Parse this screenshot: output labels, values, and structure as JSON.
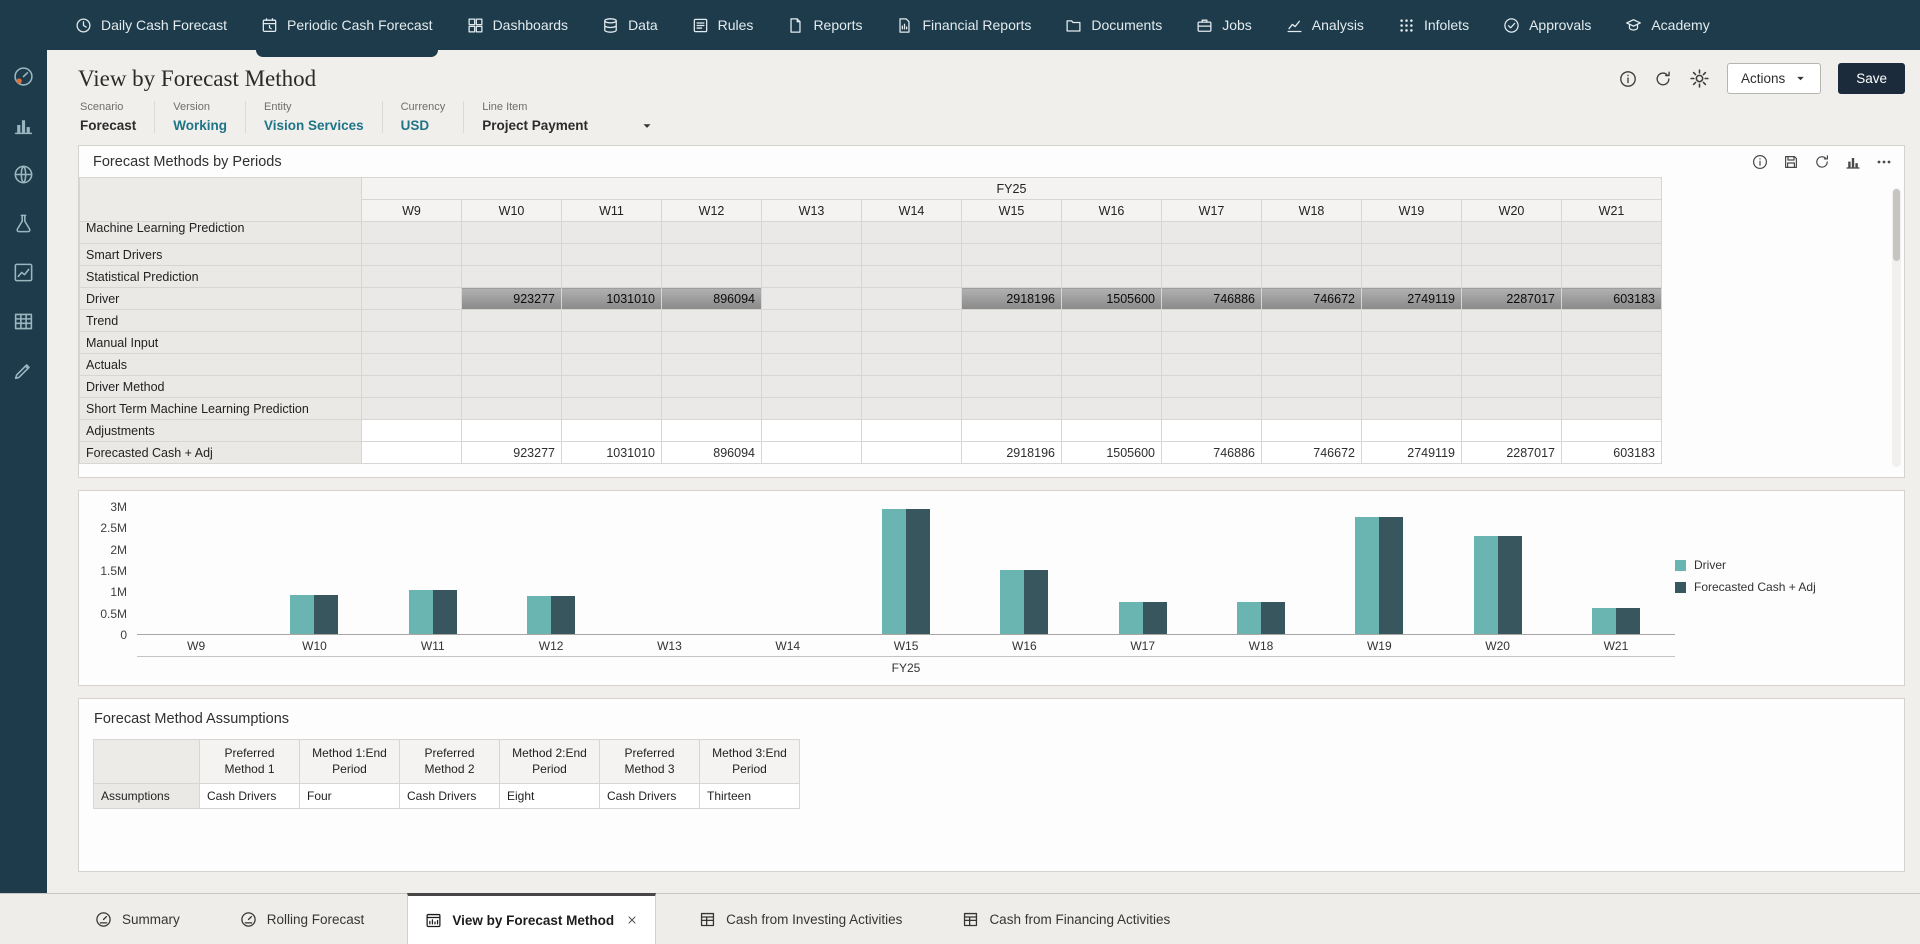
{
  "top_nav": {
    "items": [
      {
        "label": "Daily Cash Forecast",
        "icon": "clock",
        "active": false
      },
      {
        "label": "Periodic Cash Forecast",
        "icon": "calendar-clock",
        "active": true
      },
      {
        "label": "Dashboards",
        "icon": "dashboard",
        "active": false
      },
      {
        "label": "Data",
        "icon": "database",
        "active": false
      },
      {
        "label": "Rules",
        "icon": "rules",
        "active": false
      },
      {
        "label": "Reports",
        "icon": "report",
        "active": false
      },
      {
        "label": "Financial Reports",
        "icon": "financial-report",
        "active": false
      },
      {
        "label": "Documents",
        "icon": "folder",
        "active": false
      },
      {
        "label": "Jobs",
        "icon": "briefcase",
        "active": false
      },
      {
        "label": "Analysis",
        "icon": "line-chart",
        "active": false
      },
      {
        "label": "Infolets",
        "icon": "infolets",
        "active": false
      },
      {
        "label": "Approvals",
        "icon": "check",
        "active": false
      },
      {
        "label": "Academy",
        "icon": "academy",
        "active": false
      }
    ]
  },
  "left_rail": {
    "items": [
      {
        "name": "cash-forecast",
        "icon": "gauge-accent"
      },
      {
        "name": "dashboards",
        "icon": "bar-chart"
      },
      {
        "name": "data-exchange",
        "icon": "globe-grid"
      },
      {
        "name": "sandbox",
        "icon": "flask"
      },
      {
        "name": "analytics",
        "icon": "trend"
      },
      {
        "name": "forms",
        "icon": "table"
      },
      {
        "name": "valid-intersections",
        "icon": "pen-chart"
      }
    ]
  },
  "header": {
    "title": "View by Forecast Method",
    "actions_label": "Actions",
    "save_label": "Save",
    "icons": [
      "info",
      "refresh",
      "gear"
    ]
  },
  "pov": {
    "items": [
      {
        "label": "Scenario",
        "value": "Forecast",
        "link": false,
        "dropdown": false
      },
      {
        "label": "Version",
        "value": "Working",
        "link": true,
        "dropdown": false
      },
      {
        "label": "Entity",
        "value": "Vision Services",
        "link": true,
        "dropdown": false
      },
      {
        "label": "Currency",
        "value": "USD",
        "link": true,
        "dropdown": false
      },
      {
        "label": "Line Item",
        "value": "Project Payment",
        "link": false,
        "dropdown": true
      }
    ]
  },
  "grid": {
    "title": "Forecast Methods by Periods",
    "year_header": "FY25",
    "toolbar_icons": [
      "info",
      "save",
      "refresh",
      "bar-chart",
      "ellipsis"
    ],
    "columns": [
      "W9",
      "W10",
      "W11",
      "W12",
      "W13",
      "W14",
      "W15",
      "W16",
      "W17",
      "W18",
      "W19",
      "W20",
      "W21"
    ],
    "rows": [
      {
        "label": "Machine Learning Prediction",
        "style": "clipped",
        "cells": [
          "",
          "",
          "",
          "",
          "",
          "",
          "",
          "",
          "",
          "",
          "",
          "",
          ""
        ]
      },
      {
        "label": "Smart Drivers",
        "style": "readonly",
        "cells": [
          "",
          "",
          "",
          "",
          "",
          "",
          "",
          "",
          "",
          "",
          "",
          "",
          ""
        ]
      },
      {
        "label": "Statistical Prediction",
        "style": "readonly",
        "cells": [
          "",
          "",
          "",
          "",
          "",
          "",
          "",
          "",
          "",
          "",
          "",
          "",
          ""
        ]
      },
      {
        "label": "Driver",
        "style": "filled",
        "cells": [
          "",
          "923277",
          "1031010",
          "896094",
          "",
          "",
          "2918196",
          "1505600",
          "746886",
          "746672",
          "2749119",
          "2287017",
          "603183"
        ]
      },
      {
        "label": "Trend",
        "style": "readonly",
        "cells": [
          "",
          "",
          "",
          "",
          "",
          "",
          "",
          "",
          "",
          "",
          "",
          "",
          ""
        ]
      },
      {
        "label": "Manual Input",
        "style": "readonly",
        "cells": [
          "",
          "",
          "",
          "",
          "",
          "",
          "",
          "",
          "",
          "",
          "",
          "",
          ""
        ]
      },
      {
        "label": "Actuals",
        "style": "readonly",
        "cells": [
          "",
          "",
          "",
          "",
          "",
          "",
          "",
          "",
          "",
          "",
          "",
          "",
          ""
        ]
      },
      {
        "label": "Driver Method",
        "style": "readonly",
        "cells": [
          "",
          "",
          "",
          "",
          "",
          "",
          "",
          "",
          "",
          "",
          "",
          "",
          ""
        ]
      },
      {
        "label": "Short Term Machine Learning Prediction",
        "style": "readonly",
        "cells": [
          "",
          "",
          "",
          "",
          "",
          "",
          "",
          "",
          "",
          "",
          "",
          "",
          ""
        ]
      },
      {
        "label": "Adjustments",
        "style": "editable",
        "cells": [
          "",
          "",
          "",
          "",
          "",
          "",
          "",
          "",
          "",
          "",
          "",
          "",
          ""
        ]
      },
      {
        "label": "Forecasted Cash + Adj",
        "style": "editable",
        "cells": [
          "",
          "923277",
          "1031010",
          "896094",
          "",
          "",
          "2918196",
          "1505600",
          "746886",
          "746672",
          "2749119",
          "2287017",
          "603183"
        ]
      }
    ]
  },
  "chart_data": {
    "type": "bar",
    "title": "",
    "categories": [
      "W9",
      "W10",
      "W11",
      "W12",
      "W13",
      "W14",
      "W15",
      "W16",
      "W17",
      "W18",
      "W19",
      "W20",
      "W21"
    ],
    "series": [
      {
        "name": "Driver",
        "color": "#6ab5b1",
        "values": [
          0,
          923277,
          1031010,
          896094,
          0,
          0,
          2918196,
          1505600,
          746886,
          746672,
          2749119,
          2287017,
          603183
        ]
      },
      {
        "name": "Forecasted Cash + Adj",
        "color": "#37565e",
        "values": [
          0,
          923277,
          1031010,
          896094,
          0,
          0,
          2918196,
          1505600,
          746886,
          746672,
          2749119,
          2287017,
          603183
        ]
      }
    ],
    "xlabel": "FY25",
    "ylabel": "",
    "ylim": [
      0,
      3000000
    ],
    "yticks": [
      "3M",
      "2.5M",
      "2M",
      "1.5M",
      "1M",
      "0.5M",
      "0"
    ],
    "legend_position": "right",
    "grid": false
  },
  "assumptions": {
    "title": "Forecast Method Assumptions",
    "columns": [
      "Preferred Method 1",
      "Method 1:End Period",
      "Preferred Method 2",
      "Method 2:End Period",
      "Preferred Method 3",
      "Method 3:End Period"
    ],
    "rows": [
      {
        "label": "Assumptions",
        "values": [
          "Cash Drivers",
          "Four",
          "Cash Drivers",
          "Eight",
          "Cash Drivers",
          "Thirteen"
        ]
      }
    ]
  },
  "bottom_tabs": {
    "items": [
      {
        "label": "Summary",
        "icon": "gauge",
        "active": false,
        "closable": false
      },
      {
        "label": "Rolling Forecast",
        "icon": "gauge",
        "active": false,
        "closable": false
      },
      {
        "label": "View by Forecast Method",
        "icon": "window-chart",
        "active": true,
        "closable": true
      },
      {
        "label": "Cash from Investing Activities",
        "icon": "table-doc",
        "active": false,
        "closable": false
      },
      {
        "label": "Cash from Financing Activities",
        "icon": "table-doc",
        "active": false,
        "closable": false
      }
    ]
  },
  "colors": {
    "nav_background": "#1d3b4a",
    "link": "#1f7487",
    "series_driver": "#6ab5b1",
    "series_forecasted": "#37565e",
    "save_button": "#1b2b3b",
    "filled_cell": "#9a9a9a"
  }
}
